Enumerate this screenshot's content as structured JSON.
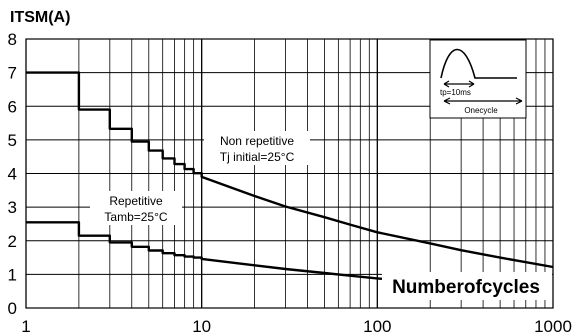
{
  "chart_data": {
    "type": "line",
    "title": "",
    "ylabel": "ITSM(A)",
    "xlabel": "Numberofcycles",
    "x_scale": "log",
    "xlim": [
      1,
      1000
    ],
    "ylim": [
      0,
      8
    ],
    "x_ticks": [
      1,
      10,
      100,
      1000
    ],
    "y_ticks": [
      0,
      1,
      2,
      3,
      4,
      5,
      6,
      7,
      8
    ],
    "grid": true,
    "series": [
      {
        "name": "Non repetitive Tj initial=25°C",
        "label_lines": [
          "Non repetitive",
          "Tj initial=25°C"
        ],
        "style": "stepped",
        "points": [
          [
            1,
            7.0
          ],
          [
            2,
            5.9
          ],
          [
            3,
            5.33
          ],
          [
            4,
            4.95
          ],
          [
            5,
            4.68
          ],
          [
            6,
            4.45
          ],
          [
            7,
            4.28
          ],
          [
            8,
            4.13
          ],
          [
            9,
            4.01
          ],
          [
            10,
            3.9
          ],
          [
            20,
            3.33
          ],
          [
            30,
            3.02
          ],
          [
            50,
            2.7
          ],
          [
            70,
            2.48
          ],
          [
            100,
            2.25
          ],
          [
            200,
            1.92
          ],
          [
            300,
            1.72
          ],
          [
            500,
            1.5
          ],
          [
            1000,
            1.22
          ]
        ]
      },
      {
        "name": "Repetitive Tamb=25°C",
        "label_lines": [
          "Repetitive",
          "Tamb=25°C"
        ],
        "style": "stepped",
        "points": [
          [
            1,
            2.55
          ],
          [
            2,
            2.15
          ],
          [
            3,
            1.95
          ],
          [
            4,
            1.82
          ],
          [
            5,
            1.71
          ],
          [
            6,
            1.63
          ],
          [
            7,
            1.57
          ],
          [
            8,
            1.53
          ],
          [
            9,
            1.5
          ],
          [
            10,
            1.46
          ],
          [
            20,
            1.27
          ],
          [
            30,
            1.16
          ],
          [
            50,
            1.04
          ],
          [
            70,
            0.96
          ],
          [
            100,
            0.88
          ],
          [
            150,
            0.8
          ],
          [
            200,
            0.75
          ]
        ]
      }
    ],
    "inset": {
      "tp_label": "tp=10ms",
      "cycle_label": "Onecycle"
    }
  }
}
